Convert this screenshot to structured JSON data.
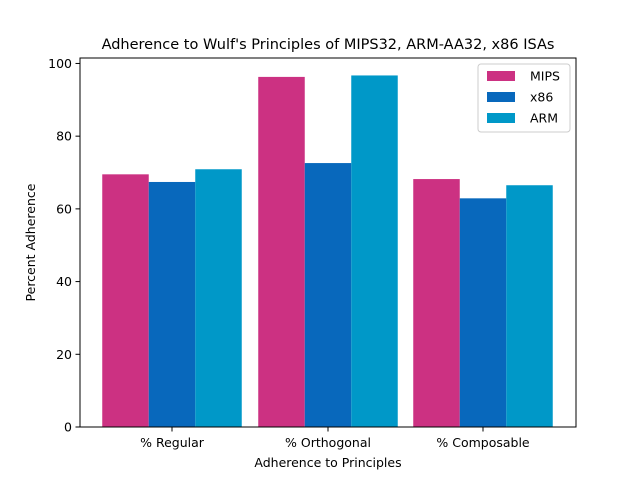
{
  "chart_data": {
    "type": "bar",
    "title": "Adherence to Wulf's Principles of MIPS32, ARM-AA32, x86 ISAs",
    "xlabel": "Adherence to Principles",
    "ylabel": "Percent Adherence",
    "categories": [
      "% Regular",
      "% Orthogonal",
      "% Composable"
    ],
    "series": [
      {
        "name": "MIPS",
        "color": "#CC3182",
        "values": [
          69.5,
          96.3,
          68.2
        ]
      },
      {
        "name": "x86",
        "color": "#0868BC",
        "values": [
          67.4,
          72.6,
          62.9
        ]
      },
      {
        "name": "ARM",
        "color": "#0098C8",
        "values": [
          70.9,
          96.7,
          66.5
        ]
      }
    ],
    "ylim": [
      0,
      101.5
    ],
    "yticks": [
      0,
      20,
      40,
      60,
      80,
      100
    ],
    "grid": false,
    "legend_position": "top-right"
  }
}
